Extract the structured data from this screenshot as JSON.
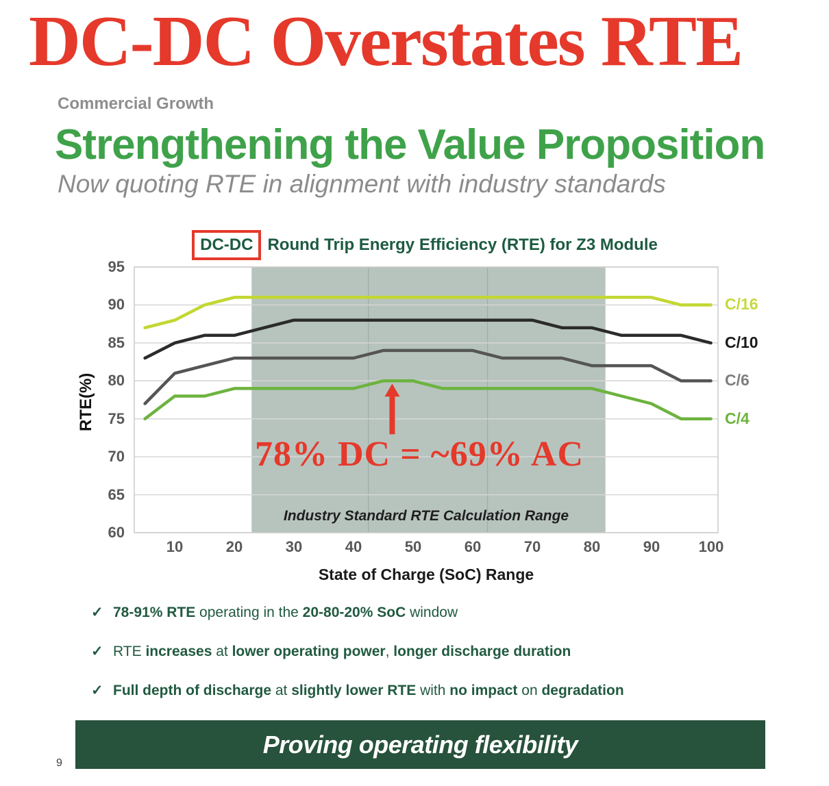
{
  "slide": {
    "main_title": "DC-DC Overstates RTE",
    "eyebrow": "Commercial Growth",
    "heading": "Strengthening the Value Proposition",
    "subheading": "Now quoting RTE in alignment with industry standards",
    "banner": "Proving operating flexibility",
    "page_number": "9"
  },
  "glyphs": {
    "check": "✓"
  },
  "colors": {
    "red": "#e5392b",
    "green": "#3fa24a",
    "gray": "#8e8e8e",
    "gray2": "#8b8b8b",
    "dark_green": "#1d5b41",
    "bullet_green": "#215a41",
    "banner_green": "#27523b",
    "band": "#b7c4be",
    "grid": "#d6d6d6",
    "border": "#c9cdc9",
    "tick": "#595959"
  },
  "chart_data": {
    "type": "line",
    "title": {
      "boxed": "DC-DC",
      "rest": "Round Trip Energy Efficiency (RTE) for Z3 Module"
    },
    "xlabel": "State of Charge (SoC) Range",
    "ylabel": "RTE(%)",
    "xlim": [
      3.2,
      101.2
    ],
    "ylim": [
      60,
      95
    ],
    "xticks": [
      10,
      20,
      30,
      40,
      50,
      60,
      70,
      80,
      90,
      100
    ],
    "yticks": [
      95,
      90,
      85,
      80,
      75,
      70,
      65,
      60
    ],
    "grid": "horizontal",
    "legend_position": "right-outside",
    "x": [
      5,
      10,
      15,
      20,
      25,
      30,
      35,
      40,
      45,
      50,
      55,
      60,
      65,
      70,
      75,
      80,
      85,
      90,
      95,
      100
    ],
    "series": [
      {
        "name": "C/16",
        "color": "#c3d733",
        "label_color": "#c6d93e",
        "values": [
          87,
          88,
          90,
          91,
          91,
          91,
          91,
          91,
          91,
          91,
          91,
          91,
          91,
          91,
          91,
          91,
          91,
          91,
          90,
          90
        ]
      },
      {
        "name": "C/10",
        "color": "#2b2b2b",
        "label_color": "#1a1a1a",
        "values": [
          83,
          85,
          86,
          86,
          87,
          88,
          88,
          88,
          88,
          88,
          88,
          88,
          88,
          88,
          87,
          87,
          86,
          86,
          86,
          85
        ]
      },
      {
        "name": "C/6",
        "color": "#555555",
        "label_color": "#7f7f7f",
        "values": [
          77,
          81,
          82,
          83,
          83,
          83,
          83,
          83,
          84,
          84,
          84,
          84,
          83,
          83,
          83,
          82,
          82,
          82,
          80,
          80
        ]
      },
      {
        "name": "C/4",
        "color": "#6db33f",
        "label_color": "#6db33f",
        "values": [
          75,
          78,
          78,
          79,
          79,
          79,
          79,
          79,
          80,
          80,
          79,
          79,
          79,
          79,
          79,
          79,
          78,
          77,
          75,
          75
        ]
      }
    ],
    "band": {
      "range": [
        22.9,
        82.3
      ],
      "seams": [
        42.5,
        62.5
      ],
      "label": "Industry Standard RTE Calculation Range",
      "color": "#b7c4be"
    },
    "annotation": {
      "text": "78% DC = ~69% AC",
      "arrow_soc": 46.5,
      "arrow_value": 80
    }
  },
  "bullets": [
    [
      {
        "t": "78-91% RTE",
        "b": true
      },
      {
        "t": " operating in the ",
        "b": false
      },
      {
        "t": "20-80-20% SoC",
        "b": true
      },
      {
        "t": " window",
        "b": false
      }
    ],
    [
      {
        "t": "RTE ",
        "b": false
      },
      {
        "t": "increases",
        "b": true
      },
      {
        "t": " at ",
        "b": false
      },
      {
        "t": "lower operating power",
        "b": true
      },
      {
        "t": ", ",
        "b": false
      },
      {
        "t": "longer discharge duration",
        "b": true
      }
    ],
    [
      {
        "t": "Full depth of discharge",
        "b": true
      },
      {
        "t": " at ",
        "b": false
      },
      {
        "t": "slightly lower RTE",
        "b": true
      },
      {
        "t": " with ",
        "b": false
      },
      {
        "t": "no impact",
        "b": true
      },
      {
        "t": " on ",
        "b": false
      },
      {
        "t": "degradation",
        "b": true
      }
    ]
  ]
}
